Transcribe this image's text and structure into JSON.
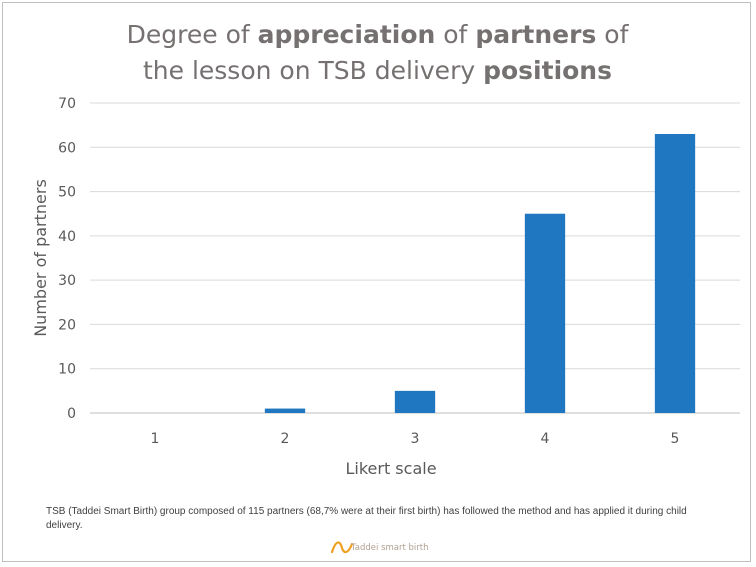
{
  "title": {
    "line1": [
      {
        "text": "Degree of ",
        "bold": false
      },
      {
        "text": "appreciation",
        "bold": true
      },
      {
        "text": " of ",
        "bold": false
      },
      {
        "text": "partners",
        "bold": true
      },
      {
        "text": " of",
        "bold": false
      }
    ],
    "line2": [
      {
        "text": "the lesson on TSB delivery ",
        "bold": false
      },
      {
        "text": "positions",
        "bold": true
      }
    ]
  },
  "chart_data": {
    "type": "bar",
    "title": "Degree of appreciation of partners of the lesson on TSB delivery positions",
    "xlabel": "Likert scale",
    "ylabel": "Number of partners",
    "categories": [
      "1",
      "2",
      "3",
      "4",
      "5"
    ],
    "values": [
      0,
      1,
      5,
      45,
      63
    ],
    "ylim": [
      0,
      70
    ],
    "yticks": [
      0,
      10,
      20,
      30,
      40,
      50,
      60,
      70
    ],
    "grid": true,
    "bar_color": "#1f77c2"
  },
  "footnote": "TSB (Taddei Smart Birth) group composed of 115 partners (68,7% were at their first birth) has followed the method and has applied it during child delivery.",
  "logo": {
    "text": "Taddei smart birth",
    "color": "#f0a020"
  }
}
